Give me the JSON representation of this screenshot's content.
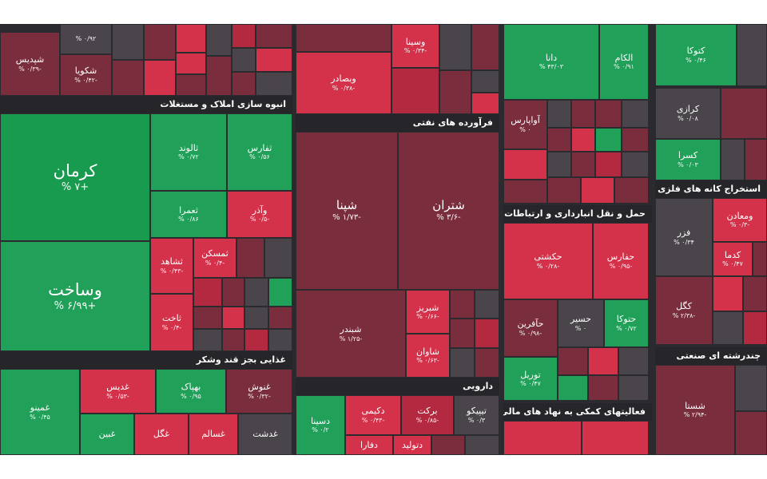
{
  "colors": {
    "up_strong": "#189a4f",
    "up": "#20a058",
    "down_strong": "#d4314a",
    "down": "#b32a40",
    "down_muted": "#7a2d3d",
    "neutral": "#4a444b",
    "background": "#2b2a2e"
  },
  "sectors": {
    "real_estate": "انبوه سازی املاک و مستغلات",
    "oil_products": "فرآورده های نفتی",
    "transport": "حمل و نقل انبارداری و ارتباطات",
    "food_sugar": "غذایی بجز قند وشکر",
    "pharma": "دارویی",
    "finance_aux": "فعالیتهای کمکی به نهاد های مالی",
    "metal_mining": "استخراج کانه های فلزی",
    "multi_industry": "چندرشته ای صنعتی"
  },
  "tiles": {
    "shepdis": {
      "name": "شپدیس",
      "pct": "% ۰/۳۹-"
    },
    "shekooya": {
      "name": "شکویا",
      "pct": "% ۰/۴۲-"
    },
    "top_small": {
      "name": "",
      "pct": "% ۰/۹۲"
    },
    "vasina": {
      "name": "وسینا",
      "pct": "% ۰/۳۴-"
    },
    "vabsadar": {
      "name": "وبصادر",
      "pct": "% ۰/۳۸-"
    },
    "dana": {
      "name": "دانا",
      "pct": "% ۴۳/۰۳"
    },
    "alkom": {
      "name": "الکام",
      "pct": "% ۰/۹۱"
    },
    "kotoka": {
      "name": "کتوکا",
      "pct": "% ۰/۴۶"
    },
    "kermaan": {
      "name": "کرمان",
      "pct": "% ۷+"
    },
    "saakht": {
      "name": "وساخت",
      "pct": "% ۶/۹۹+"
    },
    "talvand": {
      "name": "ثالوند",
      "pct": "% ۰/۷۲"
    },
    "tafars": {
      "name": "ثفارس",
      "pct": "% ۰/۵۶"
    },
    "tomra": {
      "name": "ثعمرا",
      "pct": "% ۰/۸۶"
    },
    "vaazar": {
      "name": "وآذر",
      "pct": "% ۰/۵-"
    },
    "tashahed": {
      "name": "ثشاهد",
      "pct": "% ۰/۴۳-"
    },
    "tamskan": {
      "name": "ثمسکن",
      "pct": "% ۰/۴-"
    },
    "takht": {
      "name": "ثاخت",
      "pct": "% ۰/۴-"
    },
    "shepna": {
      "name": "شپنا",
      "pct": "% ۱/۷۳-"
    },
    "shetran": {
      "name": "شتران",
      "pct": "% ۳/۶-"
    },
    "shebandar": {
      "name": "شبندر",
      "pct": "% ۱/۲۵-"
    },
    "shebriz": {
      "name": "شبریز",
      "pct": "% ۰/۶۶-"
    },
    "shavan": {
      "name": "شاوان",
      "pct": "% ۰/۶۳-"
    },
    "avaparas": {
      "name": "آواپارس",
      "pct": "% ۰"
    },
    "hakashti": {
      "name": "حکشتی",
      "pct": "% ۰/۲۸-"
    },
    "hafars": {
      "name": "حفارس",
      "pct": "% ۰/۹۵-"
    },
    "haafarin": {
      "name": "حآفرین",
      "pct": "% ۰/۹۸-"
    },
    "hasir": {
      "name": "حسیر",
      "pct": "% ۰"
    },
    "hatooka": {
      "name": "حتوکا",
      "pct": "% ۰/۷۲"
    },
    "tooril": {
      "name": "توریل",
      "pct": "% ۰/۴۷"
    },
    "karazi": {
      "name": "کرازی",
      "pct": "% ۰/۰۸"
    },
    "kasra": {
      "name": "کسرا",
      "pct": "% ۰/۰۳"
    },
    "fazar": {
      "name": "فزر",
      "pct": "% ۰/۳۴"
    },
    "vamaadan": {
      "name": "ومعادن",
      "pct": "% ۰/۳-"
    },
    "kadma": {
      "name": "کدما",
      "pct": "% ۰/۴۷"
    },
    "kegol": {
      "name": "کگل",
      "pct": "% ۲/۳۸-"
    },
    "shasta": {
      "name": "شستا",
      "pct": "% ۲/۹۴-"
    },
    "ghemino": {
      "name": "غمینو",
      "pct": "% ۰/۴۵"
    },
    "ghadis": {
      "name": "غدیس",
      "pct": "% ۰/۵۳-"
    },
    "bahpak": {
      "name": "بهپاک",
      "pct": "% ۰/۹۵"
    },
    "ghnoosh": {
      "name": "غنوش",
      "pct": "% ۰/۳۲-"
    },
    "ghegol": {
      "name": "غگل",
      "pct": ""
    },
    "ghesalem": {
      "name": "غسالم",
      "pct": ""
    },
    "ghdasht": {
      "name": "غدشت",
      "pct": ""
    },
    "ghabin": {
      "name": "غبین",
      "pct": ""
    },
    "dekimi": {
      "name": "دکیمی",
      "pct": "% ۰/۴۳-"
    },
    "barkat": {
      "name": "برکت",
      "pct": "% ۰/۸۵-"
    },
    "tipiko": {
      "name": "تیپیکو",
      "pct": "% ۰/۳"
    },
    "dasina": {
      "name": "دسینا",
      "pct": "% ۰/۲"
    },
    "daflara": {
      "name": "دفارا",
      "pct": ""
    },
    "datolid": {
      "name": "دتولید",
      "pct": ""
    }
  }
}
